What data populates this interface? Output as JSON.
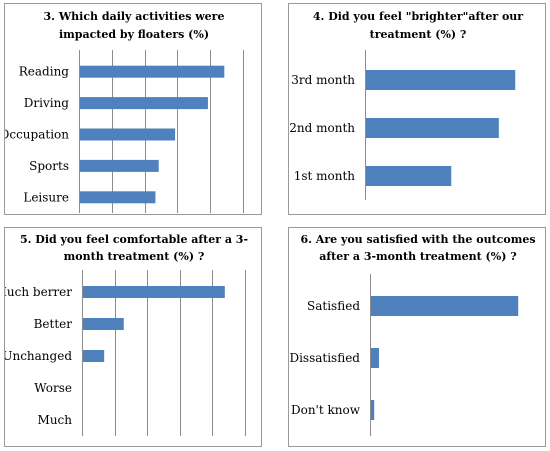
{
  "chart_data": [
    {
      "type": "bar",
      "orientation": "horizontal",
      "title_lines": [
        "3. Which daily activities were",
        "impacted by floaters (%)"
      ],
      "categories": [
        "Reading",
        "Driving",
        "Occupation",
        "Sports",
        "Leisure"
      ],
      "values": [
        88,
        78,
        58,
        48,
        46
      ],
      "xlim": [
        0,
        100
      ],
      "grid": true,
      "xlabel": "",
      "ylabel": ""
    },
    {
      "type": "bar",
      "orientation": "horizontal",
      "title_lines": [
        "4. Did you feel \"brighter\"after our",
        "treatment (%) ?"
      ],
      "categories": [
        "3rd month",
        "2nd month",
        "1st month"
      ],
      "values": [
        91,
        81,
        52
      ],
      "xlim": [
        0,
        100
      ],
      "grid": false,
      "xlabel": "",
      "ylabel": ""
    },
    {
      "type": "bar",
      "orientation": "horizontal",
      "title_lines": [
        "5. Did you feel comfortable after a 3-",
        "month treatment (%) ?"
      ],
      "categories": [
        "Much berrer",
        "Better",
        "Unchanged",
        "Worse",
        "Much"
      ],
      "values": [
        87,
        25,
        13,
        0,
        0
      ],
      "xlim": [
        0,
        100
      ],
      "grid": true,
      "xlabel": "",
      "ylabel": ""
    },
    {
      "type": "bar",
      "orientation": "horizontal",
      "title_lines": [
        "6. Are you satisfied with the outcomes",
        "after a 3-month treatment (%) ?"
      ],
      "categories": [
        "Satisfied",
        "Dissatisfied",
        "Don't know"
      ],
      "values": [
        92,
        5,
        2
      ],
      "xlim": [
        0,
        100
      ],
      "grid": false,
      "xlabel": "",
      "ylabel": ""
    }
  ]
}
